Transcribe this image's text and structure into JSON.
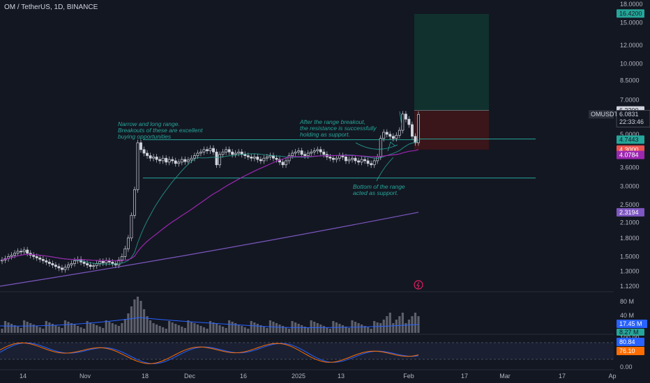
{
  "header": {
    "title": "OM / TetherUS, 1D, BINANCE"
  },
  "price_axis": {
    "ticks": [
      "18.0000",
      "15.0000",
      "12.0000",
      "10.0000",
      "8.5000",
      "7.0000",
      "5.0000",
      "3.6000",
      "3.0000",
      "2.5000",
      "2.1000",
      "1.8000",
      "1.5000",
      "1.3000",
      "1.1200"
    ]
  },
  "labels": {
    "target": "16.4200",
    "entry": "6.3200",
    "last_price": "6.0831",
    "symbol": "OMUSDT",
    "countdown": "22:33:46",
    "ma_fast": "4.7443",
    "stop": "4.3000",
    "ma_mid": "4.0784",
    "ma_slow": "2.3194"
  },
  "volume_axis": {
    "ticks": [
      "80 M",
      "40 M"
    ],
    "vol": "17.45 M",
    "vol_ma": "8.27 M"
  },
  "osc_axis": {
    "ticks": [
      "100.00",
      "0.00"
    ],
    "k": "80.84",
    "d": "76.10"
  },
  "annotations": {
    "range": [
      "Narrow and long range.",
      "Breakouts of these are excellent",
      "buying opportunities"
    ],
    "breakout": [
      "After the range breakout,",
      "the resistance is successfully",
      "holding as support."
    ],
    "support": [
      "Bottom of the range",
      "acted as support."
    ]
  },
  "time_axis": [
    "14",
    "Nov",
    "18",
    "Dec",
    "16",
    "2025",
    "13",
    "Feb",
    "17",
    "Mar",
    "17",
    "Ap"
  ],
  "colors": {
    "up": "#26a69a",
    "down": "#ef5350",
    "ma_fast": "#26a69a",
    "ma_mid": "#9c27b0",
    "ma_slow": "#7e57c2",
    "target": "#1e5f57",
    "stop_zone": "#5a1a1e",
    "volume": "#5d606b",
    "stoch_k": "#2962ff",
    "stoch_d": "#ff6d00"
  },
  "chart_data": {
    "type": "candlestick",
    "title": "OM / TetherUS, 1D, BINANCE",
    "x_range": [
      "Oct 2024",
      "Apr 2025"
    ],
    "ylim": [
      1.12,
      18.0
    ],
    "y_scale": "log",
    "range_top": 4.74,
    "range_bottom": 3.25,
    "long_position": {
      "entry": 6.32,
      "target": 16.42,
      "stop": 4.3
    },
    "last_close": 6.0831,
    "indicators": [
      "MA fast 4.7443",
      "MA mid 4.0784",
      "MA slow 2.3194",
      "Volume 17.45 M",
      "Volume MA 8.27 M",
      "Stoch K 80.84",
      "Stoch D 76.10"
    ],
    "closes": [
      1.45,
      1.47,
      1.5,
      1.52,
      1.55,
      1.58,
      1.57,
      1.6,
      1.55,
      1.52,
      1.5,
      1.48,
      1.46,
      1.44,
      1.42,
      1.4,
      1.38,
      1.36,
      1.34,
      1.32,
      1.35,
      1.38,
      1.4,
      1.44,
      1.46,
      1.42,
      1.4,
      1.38,
      1.36,
      1.37,
      1.4,
      1.43,
      1.41,
      1.44,
      1.42,
      1.4,
      1.38,
      1.45,
      1.5,
      1.62,
      1.8,
      2.25,
      2.9,
      4.6,
      4.3,
      4.15,
      4.05,
      3.95,
      4.0,
      3.9,
      3.85,
      3.95,
      3.8,
      3.9,
      3.85,
      3.75,
      3.8,
      3.9,
      3.82,
      3.88,
      3.95,
      4.05,
      4.15,
      4.2,
      4.3,
      4.25,
      4.35,
      4.2,
      3.7,
      4.1,
      4.2,
      4.3,
      4.2,
      4.1,
      4.15,
      4.2,
      4.1,
      4.05,
      4.0,
      3.95,
      4.0,
      3.9,
      3.85,
      3.95,
      4.0,
      4.05,
      3.95,
      3.9,
      3.8,
      3.7,
      3.85,
      4.05,
      4.15,
      4.2,
      4.25,
      4.1,
      4.05,
      4.15,
      4.2,
      4.25,
      4.3,
      4.2,
      4.1,
      4.0,
      3.95,
      3.9,
      3.95,
      4.05,
      4.0,
      3.85,
      3.9,
      3.95,
      3.85,
      3.8,
      3.9,
      3.85,
      3.75,
      3.7,
      3.85,
      4.0,
      4.8,
      5.1,
      5.0,
      4.9,
      4.8,
      4.95,
      5.2,
      6.1,
      5.8,
      5.5,
      4.9,
      4.6,
      6.08
    ]
  }
}
